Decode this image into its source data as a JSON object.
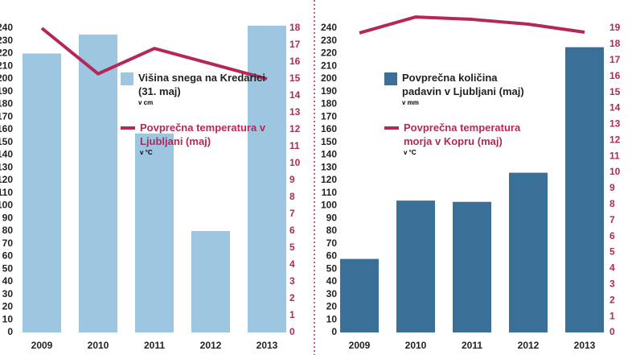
{
  "chart_data": [
    {
      "type": "combo",
      "categories": [
        "2009",
        "2010",
        "2011",
        "2012",
        "2013"
      ],
      "series": [
        {
          "name": "Višina snega na Kredarici (31. maj)",
          "unit": "v cm",
          "type": "bar",
          "axis": "y",
          "color": "#9dc6e0",
          "values": [
            220,
            235,
            157,
            80,
            242
          ]
        },
        {
          "name": "Povprečna temperatura v Ljubljani (maj)",
          "unit": "v °C",
          "type": "line",
          "axis": "y2",
          "color": "#b5265a",
          "values": [
            18,
            15.3,
            16.8,
            15.9,
            15
          ]
        }
      ],
      "ylim": [
        0,
        240
      ],
      "yticks": [
        0,
        10,
        20,
        30,
        40,
        50,
        60,
        70,
        80,
        90,
        100,
        110,
        120,
        130,
        140,
        150,
        160,
        170,
        180,
        190,
        200,
        210,
        220,
        230,
        240
      ],
      "y2lim": [
        0,
        18
      ],
      "y2ticks": [
        0,
        1,
        2,
        3,
        4,
        5,
        6,
        7,
        8,
        9,
        10,
        11,
        12,
        13,
        14,
        15,
        16,
        17,
        18
      ]
    },
    {
      "type": "combo",
      "categories": [
        "2009",
        "2010",
        "2011",
        "2012",
        "2013"
      ],
      "series": [
        {
          "name": "Povprečna količina padavin v Ljubljani (maj)",
          "unit": "v mm",
          "type": "bar",
          "axis": "y",
          "color": "#3a6f97",
          "values": [
            58,
            104,
            103,
            126,
            225
          ]
        },
        {
          "name": "Povprečna temperatura morja v Kopru (maj)",
          "unit": "v °C",
          "type": "line",
          "axis": "y2",
          "color": "#b5265a",
          "values": [
            18.7,
            19.7,
            19.55,
            19.25,
            18.75
          ]
        }
      ],
      "ylim": [
        0,
        240
      ],
      "yticks": [
        0,
        10,
        20,
        30,
        40,
        50,
        60,
        70,
        80,
        90,
        100,
        110,
        120,
        130,
        140,
        150,
        160,
        170,
        180,
        190,
        200,
        210,
        220,
        230,
        240
      ],
      "y2lim": [
        0,
        19
      ],
      "y2ticks": [
        0,
        1,
        2,
        3,
        4,
        5,
        6,
        7,
        8,
        9,
        10,
        11,
        12,
        13,
        14,
        15,
        16,
        17,
        18,
        19
      ]
    }
  ]
}
